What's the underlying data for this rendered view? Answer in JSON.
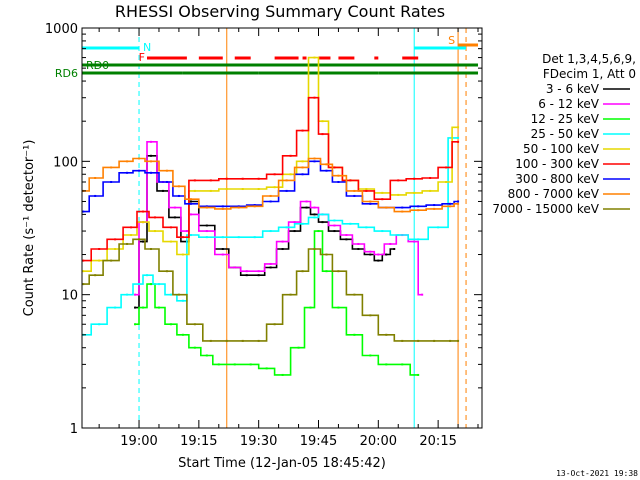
{
  "chart_data": {
    "type": "line",
    "title": "RHESSI Observing Summary Count Rates",
    "xlabel": "Start Time (12-Jan-05 18:45:42)",
    "ylabel": "Count Rate (s⁻¹ detector⁻¹)",
    "yscale": "log",
    "ylim": [
      1,
      1000
    ],
    "xlim": [
      "18:45:42",
      "20:26:00"
    ],
    "x_ticks": [
      "19:00",
      "19:15",
      "19:30",
      "19:45",
      "20:00",
      "20:15"
    ],
    "y_ticks": [
      "1",
      "10",
      "100",
      "1000"
    ],
    "grid": false,
    "legend_position": "right",
    "legend_header": [
      "Det 1,3,4,5,6,9,",
      "FDecim 1, Att 0"
    ],
    "timestamp": "13-Oct-2021 19:38",
    "series": [
      {
        "name": "3 - 6 keV",
        "color": "#000000",
        "x": [
          "18:59",
          "19:01",
          "19:03",
          "19:06",
          "19:09",
          "19:12",
          "19:13",
          "19:17",
          "19:21",
          "19:24",
          "19:27",
          "19:30",
          "19:33",
          "19:36",
          "19:39",
          "19:42",
          "19:44",
          "19:46",
          "19:49",
          "19:52",
          "19:55",
          "19:58",
          "20:00",
          "20:02",
          "20:04"
        ],
        "y": [
          8,
          25,
          110,
          60,
          38,
          25,
          50,
          33,
          22,
          16,
          14,
          14,
          16,
          22,
          30,
          45,
          40,
          35,
          30,
          26,
          22,
          20,
          18,
          20,
          22
        ]
      },
      {
        "name": "6 - 12 keV",
        "color": "#ff00ff",
        "x": [
          "18:59",
          "19:01",
          "19:03",
          "19:06",
          "19:09",
          "19:12",
          "19:13",
          "19:17",
          "19:21",
          "19:24",
          "19:27",
          "19:30",
          "19:33",
          "19:36",
          "19:39",
          "19:42",
          "19:44",
          "19:46",
          "19:49",
          "19:52",
          "19:55",
          "19:58",
          "20:00",
          "20:03",
          "20:06",
          "20:09",
          "20:11"
        ],
        "y": [
          10,
          35,
          140,
          70,
          45,
          30,
          40,
          30,
          20,
          16,
          15,
          15,
          17,
          25,
          35,
          50,
          45,
          40,
          33,
          28,
          24,
          21,
          20,
          24,
          28,
          25,
          10
        ]
      },
      {
        "name": "12 - 25 keV",
        "color": "#00ff00",
        "x": [
          "18:59",
          "19:01",
          "19:03",
          "19:05",
          "19:08",
          "19:11",
          "19:14",
          "19:17",
          "19:20",
          "19:24",
          "19:28",
          "19:32",
          "19:36",
          "19:40",
          "19:43",
          "19:45",
          "19:47",
          "19:50",
          "19:54",
          "19:58",
          "20:02",
          "20:06",
          "20:10"
        ],
        "y": [
          6,
          8,
          12,
          8,
          6,
          5,
          4,
          3.5,
          3,
          3,
          3,
          2.8,
          2.5,
          4,
          8,
          30,
          15,
          8,
          5,
          3.5,
          3,
          3,
          2.5
        ]
      },
      {
        "name": "25 - 50 keV",
        "color": "#00ffff",
        "x": [
          "18:46",
          "18:50",
          "18:54",
          "18:57",
          "19:00",
          "19:02",
          "19:05",
          "19:08",
          "19:11",
          "19:13",
          "19:17",
          "19:21",
          "19:25",
          "19:29",
          "19:33",
          "19:37",
          "19:41",
          "19:44",
          "19:46",
          "19:49",
          "19:53",
          "19:57",
          "20:01",
          "20:05",
          "20:10",
          "20:15",
          "20:20"
        ],
        "y": [
          5,
          6,
          8,
          10,
          12,
          14,
          12,
          10,
          9,
          28,
          27,
          27,
          27,
          27,
          30,
          32,
          34,
          38,
          40,
          36,
          34,
          32,
          30,
          28,
          26,
          32,
          150
        ]
      },
      {
        "name": "50 - 100 keV",
        "color": "#e6d800",
        "x": [
          "18:46",
          "18:50",
          "18:54",
          "18:58",
          "19:01",
          "19:04",
          "19:08",
          "19:11",
          "19:14",
          "19:18",
          "19:22",
          "19:26",
          "19:30",
          "19:34",
          "19:38",
          "19:41",
          "19:44",
          "19:46",
          "19:49",
          "19:53",
          "19:57",
          "20:01",
          "20:05",
          "20:09",
          "20:13",
          "20:17",
          "20:20"
        ],
        "y": [
          15,
          18,
          22,
          28,
          35,
          30,
          25,
          20,
          60,
          60,
          62,
          62,
          62,
          64,
          80,
          100,
          600,
          200,
          90,
          72,
          62,
          58,
          56,
          58,
          60,
          70,
          180
        ]
      },
      {
        "name": "100 - 300 keV",
        "color": "#ff0000",
        "x": [
          "18:46",
          "18:50",
          "18:54",
          "18:58",
          "19:01",
          "19:04",
          "19:08",
          "19:11",
          "19:14",
          "19:18",
          "19:22",
          "19:26",
          "19:30",
          "19:34",
          "19:38",
          "19:41",
          "19:44",
          "19:46",
          "19:49",
          "19:53",
          "19:57",
          "20:01",
          "20:05",
          "20:09",
          "20:13",
          "20:17",
          "20:20"
        ],
        "y": [
          18,
          22,
          26,
          32,
          42,
          38,
          32,
          27,
          72,
          72,
          74,
          74,
          74,
          80,
          110,
          170,
          300,
          160,
          90,
          72,
          60,
          52,
          72,
          74,
          75,
          90,
          140
        ]
      },
      {
        "name": "300 - 800 keV",
        "color": "#0000ff",
        "x": [
          "18:46",
          "18:49",
          "18:53",
          "18:57",
          "19:00",
          "19:03",
          "19:07",
          "19:10",
          "19:13",
          "19:17",
          "19:21",
          "19:25",
          "19:29",
          "19:33",
          "19:37",
          "19:41",
          "19:44",
          "19:47",
          "19:50",
          "19:54",
          "19:58",
          "20:02",
          "20:06",
          "20:10",
          "20:14",
          "20:18",
          "20:20"
        ],
        "y": [
          42,
          55,
          70,
          82,
          85,
          82,
          70,
          55,
          48,
          46,
          46,
          46,
          47,
          50,
          60,
          80,
          100,
          85,
          70,
          55,
          48,
          45,
          45,
          46,
          47,
          48,
          50
        ]
      },
      {
        "name": "800 - 7000 keV",
        "color": "#ff8000",
        "x": [
          "18:46",
          "18:49",
          "18:53",
          "18:57",
          "19:00",
          "19:03",
          "19:07",
          "19:10",
          "19:13",
          "19:17",
          "19:21",
          "19:25",
          "19:29",
          "19:33",
          "19:37",
          "19:41",
          "19:44",
          "19:47",
          "19:50",
          "19:54",
          "19:58",
          "20:02",
          "20:06",
          "20:10",
          "20:14",
          "20:18",
          "20:20"
        ],
        "y": [
          60,
          75,
          90,
          100,
          105,
          100,
          85,
          65,
          52,
          45,
          44,
          45,
          46,
          55,
          72,
          90,
          105,
          95,
          78,
          60,
          50,
          45,
          42,
          43,
          44,
          46,
          48
        ]
      },
      {
        "name": "7000 - 15000 keV",
        "color": "#808000",
        "x": [
          "18:46",
          "18:49",
          "18:53",
          "18:57",
          "19:00",
          "19:03",
          "19:07",
          "19:10",
          "19:14",
          "19:18",
          "19:22",
          "19:26",
          "19:30",
          "19:34",
          "19:38",
          "19:41",
          "19:44",
          "19:47",
          "19:50",
          "19:54",
          "19:58",
          "20:02",
          "20:06",
          "20:10",
          "20:14",
          "20:18",
          "20:20"
        ],
        "y": [
          12,
          14,
          18,
          24,
          26,
          22,
          15,
          10,
          6,
          4.5,
          4.5,
          4.5,
          4.5,
          6,
          10,
          15,
          22,
          20,
          15,
          10,
          7,
          5,
          4.5,
          4.5,
          4.5,
          4.5,
          4.5
        ]
      }
    ],
    "flags": {
      "N_label": "N",
      "F_label": "F",
      "S_label": "S",
      "RD0_label": "RD0",
      "RD6_label": "RD6",
      "night_bars": [
        [
          "18:45:42",
          "19:00"
        ],
        [
          "20:09",
          "20:22"
        ]
      ],
      "flare_bars": [
        [
          "19:02",
          "19:12"
        ],
        [
          "19:15",
          "19:21"
        ],
        [
          "19:24",
          "19:28"
        ],
        [
          "19:34",
          "19:40"
        ],
        [
          "19:41",
          "19:42"
        ],
        [
          "19:45",
          "19:48"
        ],
        [
          "19:50",
          "19:54"
        ],
        [
          "19:59",
          "20:00"
        ],
        [
          "20:06",
          "20:10"
        ]
      ],
      "rd0_bars": [
        [
          "18:45:42",
          "20:25"
        ]
      ],
      "rd6_bars": [
        [
          "18:45:42",
          "19:11"
        ],
        [
          "19:11",
          "19:30"
        ],
        [
          "19:30",
          "20:00"
        ],
        [
          "20:00",
          "20:25"
        ]
      ],
      "saa_bar": [
        [
          "20:20",
          "20:25"
        ]
      ]
    },
    "vlines": [
      {
        "x": "19:00",
        "color": "#00ffff",
        "style": "dashed"
      },
      {
        "x": "20:09",
        "color": "#00ffff",
        "style": "solid"
      },
      {
        "x": "20:20",
        "color": "#ff8000",
        "style": "solid"
      },
      {
        "x": "20:22",
        "color": "#ff8000",
        "style": "dashed"
      },
      {
        "x": "19:22",
        "color": "#ff8000",
        "style": "solid"
      }
    ]
  }
}
